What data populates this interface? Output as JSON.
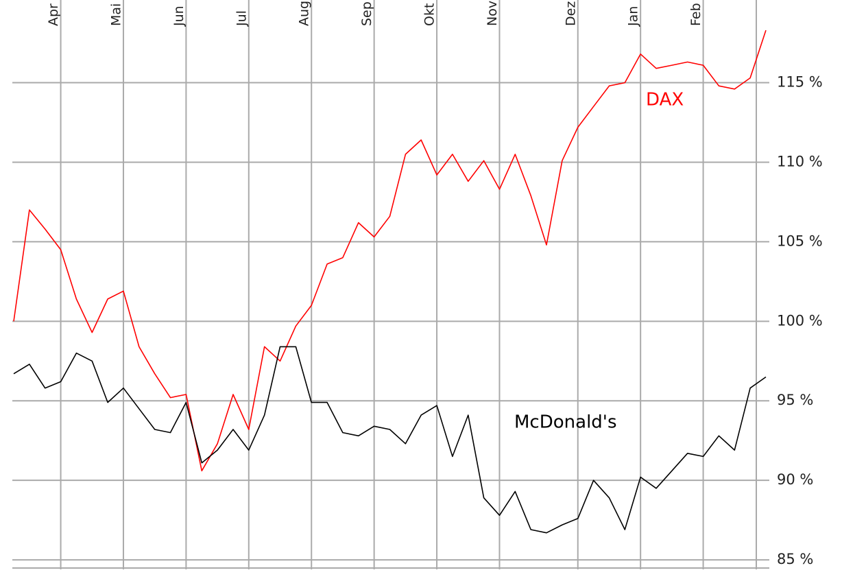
{
  "chart_data": {
    "type": "line",
    "categories": [
      null,
      null,
      null,
      "Apr",
      null,
      null,
      null,
      "Mai",
      null,
      null,
      null,
      "Jun",
      null,
      null,
      null,
      "Jul",
      null,
      null,
      null,
      "Aug",
      null,
      null,
      null,
      "Sep",
      null,
      null,
      null,
      "Okt",
      null,
      null,
      null,
      "Nov",
      null,
      null,
      null,
      null,
      "Dez",
      null,
      null,
      null,
      "Jan",
      null,
      null,
      null,
      "Feb",
      null,
      null,
      null,
      null
    ],
    "series": [
      {
        "name": "DAX",
        "color": "#ff0000",
        "values": [
          100,
          107.0,
          105.8,
          104.5,
          101.4,
          99.3,
          101.4,
          101.9,
          98.4,
          96.7,
          95.2,
          95.4,
          90.6,
          92.3,
          95.4,
          93.2,
          98.4,
          97.5,
          99.7,
          101.0,
          103.6,
          104.0,
          106.2,
          105.3,
          106.6,
          110.5,
          111.4,
          109.2,
          110.5,
          108.8,
          110.1,
          108.3,
          110.5,
          107.9,
          104.8,
          110.1,
          112.2,
          113.5,
          114.8,
          115.0,
          116.8,
          115.9,
          116.1,
          116.3,
          116.1,
          114.8,
          114.6,
          115.3,
          118.3
        ]
      },
      {
        "name": "McDonald's",
        "color": "#000000",
        "values": [
          96.7,
          97.3,
          95.8,
          96.2,
          98.0,
          97.5,
          94.9,
          95.8,
          94.5,
          93.2,
          93.0,
          94.9,
          91.1,
          91.9,
          93.2,
          91.9,
          94.1,
          98.4,
          98.4,
          94.9,
          94.9,
          93.0,
          92.8,
          93.4,
          93.2,
          92.3,
          94.1,
          94.7,
          91.5,
          94.1,
          88.9,
          87.8,
          89.3,
          86.9,
          86.7,
          87.2,
          87.6,
          90.0,
          88.9,
          86.9,
          90.2,
          89.5,
          90.6,
          91.7,
          91.5,
          92.8,
          91.9,
          95.8,
          96.5
        ]
      }
    ],
    "ylim": [
      84.4,
      120.2
    ],
    "yticks": [
      {
        "value": 85,
        "label": "85 %"
      },
      {
        "value": 90,
        "label": "90 %"
      },
      {
        "value": 95,
        "label": "95 %"
      },
      {
        "value": 100,
        "label": "100 %"
      },
      {
        "value": 105,
        "label": "105 %"
      },
      {
        "value": 110,
        "label": "110 %"
      },
      {
        "value": 115,
        "label": "115 %"
      }
    ],
    "grid": true
  }
}
